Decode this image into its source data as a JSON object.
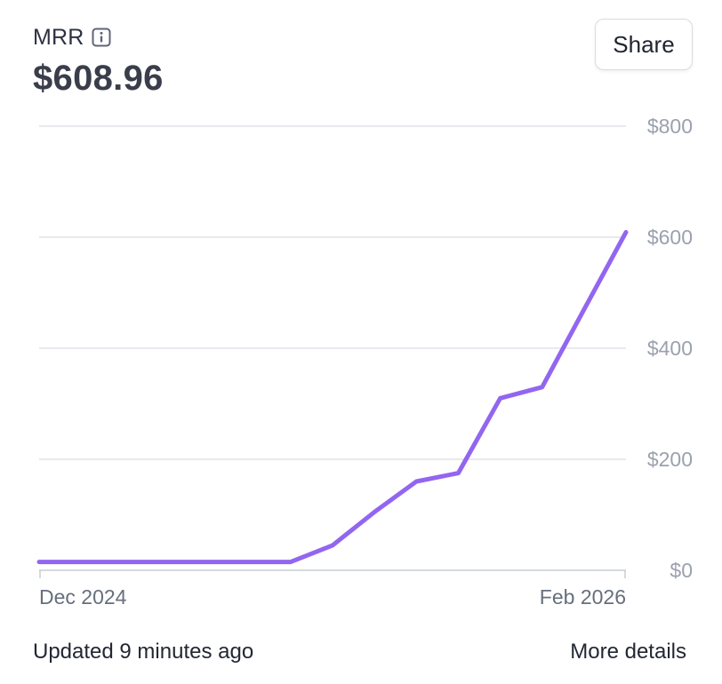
{
  "metric": {
    "label": "MRR",
    "value": "$608.96"
  },
  "share_label": "Share",
  "footer": {
    "updated": "Updated 9 minutes ago",
    "details_link": "More details"
  },
  "colors": {
    "line": "#9266f0",
    "grid": "#dfe3e8",
    "axis": "#c9ced6"
  },
  "chart_data": {
    "type": "line",
    "x_tick_labels": [
      "Dec 2024",
      "Feb 2026"
    ],
    "y_tick_labels": [
      "$0",
      "$200",
      "$400",
      "$600",
      "$800"
    ],
    "y_ticks": [
      0,
      200,
      400,
      600,
      800
    ],
    "ylim": [
      0,
      800
    ],
    "grid": true,
    "y_axis_side": "right",
    "series": [
      {
        "x": [
          "Dec 2024",
          "Jan 2025",
          "Feb 2025",
          "Mar 2025",
          "Apr 2025",
          "May 2025",
          "Jun 2025",
          "Jul 2025",
          "Aug 2025",
          "Sep 2025",
          "Oct 2025",
          "Nov 2025",
          "Dec 2025",
          "Jan 2026",
          "Feb 2026"
        ],
        "values": [
          15,
          15,
          15,
          15,
          15,
          15,
          15,
          45,
          105,
          160,
          175,
          310,
          330,
          470,
          609
        ]
      }
    ]
  }
}
